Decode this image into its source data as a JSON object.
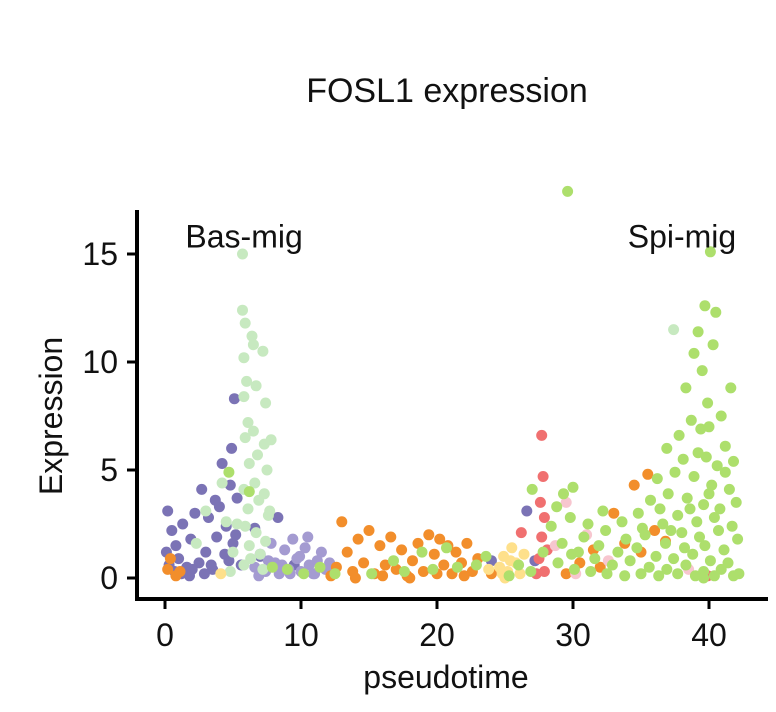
{
  "chart_data": {
    "type": "scatter",
    "title": "FOSL1 expression",
    "xlabel": "pseudotime",
    "ylabel": "Expression",
    "xlim": [
      -1,
      42.5
    ],
    "ylim": [
      -1,
      17
    ],
    "xticks": [
      0,
      10,
      20,
      30,
      40
    ],
    "yticks": [
      0,
      5,
      10,
      15
    ],
    "annotations": [
      {
        "text": "Bas-mig",
        "x": 1.5,
        "y": 15.8,
        "anchor": "start"
      },
      {
        "text": "Spi-mig",
        "x": 42,
        "y": 15.8,
        "anchor": "end"
      }
    ],
    "grid": false,
    "legend": "none",
    "series": [
      {
        "name": "group-dark-purple",
        "color": "#7b73b5",
        "points": [
          [
            0.2,
            3.1
          ],
          [
            0.5,
            2.2
          ],
          [
            0.8,
            1.5
          ],
          [
            1.0,
            0.9
          ],
          [
            1.3,
            2.5
          ],
          [
            1.6,
            0.5
          ],
          [
            1.9,
            1.8
          ],
          [
            2.2,
            3.0
          ],
          [
            2.5,
            0.7
          ],
          [
            2.7,
            4.1
          ],
          [
            3.0,
            1.2
          ],
          [
            3.2,
            2.8
          ],
          [
            3.5,
            0.4
          ],
          [
            3.8,
            1.9
          ],
          [
            4.0,
            3.3
          ],
          [
            4.2,
            5.3
          ],
          [
            4.5,
            2.4
          ],
          [
            4.7,
            0.8
          ],
          [
            4.9,
            6.0
          ],
          [
            5.1,
            8.3
          ],
          [
            5.3,
            3.7
          ],
          [
            0.3,
            0.6
          ],
          [
            0.7,
            0.3
          ],
          [
            1.2,
            0.2
          ],
          [
            2.0,
            0.4
          ],
          [
            2.9,
            0.2
          ],
          [
            3.4,
            0.6
          ],
          [
            4.4,
            1.1
          ],
          [
            5.0,
            1.6
          ],
          [
            6.6,
            2.3
          ],
          [
            7.0,
            1.0
          ],
          [
            8.3,
            2.8
          ],
          [
            9.5,
            0.6
          ],
          [
            26.6,
            3.1
          ],
          [
            27.2,
            0.8
          ],
          [
            24.0,
            0.8
          ],
          [
            5.6,
            0.6
          ],
          [
            1.8,
            0.1
          ],
          [
            0.1,
            1.2
          ],
          [
            4.8,
            4.3
          ],
          [
            5.2,
            2.0
          ],
          [
            3.7,
            3.6
          ]
        ]
      },
      {
        "name": "group-light-purple",
        "color": "#a49bd1",
        "points": [
          [
            6.6,
            0.5
          ],
          [
            7.0,
            1.1
          ],
          [
            7.4,
            0.3
          ],
          [
            7.8,
            1.6
          ],
          [
            8.1,
            0.7
          ],
          [
            8.4,
            0.2
          ],
          [
            8.8,
            1.3
          ],
          [
            9.1,
            0.4
          ],
          [
            9.4,
            1.8
          ],
          [
            9.7,
            0.9
          ],
          [
            10.0,
            0.3
          ],
          [
            10.3,
            1.4
          ],
          [
            10.6,
            0.6
          ],
          [
            10.9,
            0.2
          ],
          [
            11.2,
            0.8
          ],
          [
            11.5,
            1.2
          ],
          [
            11.8,
            0.4
          ],
          [
            12.1,
            0.7
          ],
          [
            8.6,
            0.6
          ],
          [
            9.9,
            1.0
          ],
          [
            7.6,
            0.8
          ],
          [
            10.5,
            1.9
          ],
          [
            11.0,
            0.2
          ],
          [
            6.9,
            0.1
          ],
          [
            9.2,
            0.2
          ],
          [
            12.4,
            0.3
          ]
        ]
      },
      {
        "name": "group-mint",
        "color": "#c7e9c0",
        "points": [
          [
            5.7,
            15.0
          ],
          [
            5.7,
            12.4
          ],
          [
            5.9,
            11.8
          ],
          [
            5.8,
            10.2
          ],
          [
            6.0,
            9.1
          ],
          [
            5.8,
            8.4
          ],
          [
            6.1,
            7.2
          ],
          [
            5.9,
            6.5
          ],
          [
            6.2,
            5.3
          ],
          [
            5.8,
            4.1
          ],
          [
            6.1,
            3.2
          ],
          [
            5.9,
            2.4
          ],
          [
            6.2,
            1.5
          ],
          [
            5.8,
            0.6
          ],
          [
            6.5,
            10.8
          ],
          [
            6.7,
            8.9
          ],
          [
            6.5,
            6.8
          ],
          [
            6.8,
            5.7
          ],
          [
            6.6,
            4.4
          ],
          [
            6.9,
            3.6
          ],
          [
            6.7,
            2.1
          ],
          [
            7.0,
            1.1
          ],
          [
            7.2,
            10.5
          ],
          [
            7.4,
            8.1
          ],
          [
            7.3,
            6.2
          ],
          [
            7.5,
            5.0
          ],
          [
            7.3,
            3.9
          ],
          [
            7.6,
            2.9
          ],
          [
            7.4,
            1.7
          ],
          [
            7.2,
            0.4
          ],
          [
            4.2,
            4.4
          ],
          [
            4.5,
            2.6
          ],
          [
            5.0,
            1.2
          ],
          [
            5.3,
            2.5
          ],
          [
            6.3,
            0.9
          ],
          [
            4.8,
            0.3
          ],
          [
            3.0,
            3.1
          ],
          [
            2.3,
            1.6
          ],
          [
            37.4,
            11.5
          ],
          [
            6.4,
            11.2
          ],
          [
            7.8,
            6.4
          ],
          [
            7.7,
            3.1
          ]
        ]
      },
      {
        "name": "group-orange",
        "color": "#f28e2b",
        "points": [
          [
            0.2,
            0.4
          ],
          [
            0.4,
            0.9
          ],
          [
            0.8,
            0.1
          ],
          [
            1.1,
            0.3
          ],
          [
            12.6,
            0.5
          ],
          [
            13.0,
            2.6
          ],
          [
            13.4,
            1.2
          ],
          [
            13.8,
            0.3
          ],
          [
            14.2,
            1.8
          ],
          [
            14.6,
            0.7
          ],
          [
            15.0,
            2.2
          ],
          [
            15.4,
            0.2
          ],
          [
            15.8,
            1.5
          ],
          [
            16.2,
            0.6
          ],
          [
            16.6,
            1.9
          ],
          [
            17.0,
            0.4
          ],
          [
            17.4,
            1.3
          ],
          [
            17.8,
            0.1
          ],
          [
            18.2,
            0.8
          ],
          [
            18.6,
            1.6
          ],
          [
            19.0,
            0.3
          ],
          [
            19.4,
            2.0
          ],
          [
            19.8,
            1.1
          ],
          [
            20.2,
            1.8
          ],
          [
            20.5,
            0.6
          ],
          [
            20.8,
            1.5
          ],
          [
            21.1,
            0.2
          ],
          [
            21.4,
            1.2
          ],
          [
            21.8,
            0.7
          ],
          [
            22.2,
            1.6
          ],
          [
            22.6,
            0.3
          ],
          [
            23.0,
            0.9
          ],
          [
            12.2,
            0.1
          ],
          [
            14.0,
            0.0
          ],
          [
            16.0,
            0.1
          ],
          [
            18.0,
            0.0
          ],
          [
            20.0,
            0.2
          ],
          [
            22.0,
            0.1
          ],
          [
            24.0,
            0.2
          ],
          [
            33.0,
            3.0
          ],
          [
            34.5,
            4.3
          ],
          [
            35.5,
            4.8
          ],
          [
            36.0,
            2.2
          ],
          [
            35.0,
            1.2
          ],
          [
            32.0,
            0.5
          ],
          [
            30.5,
            0.7
          ],
          [
            36.8,
            1.7
          ],
          [
            33.8,
            1.6
          ],
          [
            29.5,
            0.2
          ],
          [
            31.5,
            1.3
          ]
        ]
      },
      {
        "name": "group-yellow",
        "color": "#fee08b",
        "points": [
          [
            24.6,
            0.5
          ],
          [
            24.9,
            1.0
          ],
          [
            25.2,
            0.3
          ],
          [
            25.5,
            1.4
          ],
          [
            25.8,
            0.7
          ],
          [
            26.1,
            0.2
          ],
          [
            24.8,
            0.2
          ],
          [
            25.4,
            0.8
          ],
          [
            26.4,
            1.1
          ],
          [
            23.8,
            0.4
          ],
          [
            25.0,
            0.0
          ],
          [
            4.1,
            0.2
          ]
        ]
      },
      {
        "name": "group-red",
        "color": "#f07070",
        "points": [
          [
            27.7,
            6.6
          ],
          [
            27.8,
            4.7
          ],
          [
            27.6,
            3.5
          ],
          [
            27.9,
            2.8
          ],
          [
            27.7,
            1.9
          ],
          [
            27.5,
            0.9
          ],
          [
            27.9,
            0.3
          ],
          [
            27.3,
            0.2
          ],
          [
            28.1,
            1.3
          ],
          [
            26.2,
            2.1
          ],
          [
            39.9,
            0.1
          ]
        ]
      },
      {
        "name": "group-pink",
        "color": "#f7c6cf",
        "points": [
          [
            29.5,
            3.5
          ],
          [
            31.0,
            2.0
          ],
          [
            32.6,
            0.8
          ],
          [
            28.7,
            1.5
          ],
          [
            38.5,
            0.4
          ],
          [
            30.2,
            0.2
          ]
        ]
      },
      {
        "name": "group-green",
        "color": "#addf6c",
        "points": [
          [
            29.6,
            17.9
          ],
          [
            40.1,
            15.1
          ],
          [
            39.7,
            12.6
          ],
          [
            40.5,
            12.3
          ],
          [
            39.2,
            11.4
          ],
          [
            38.9,
            10.4
          ],
          [
            40.3,
            10.8
          ],
          [
            39.5,
            9.6
          ],
          [
            38.3,
            8.8
          ],
          [
            41.6,
            8.8
          ],
          [
            39.9,
            8.1
          ],
          [
            38.7,
            7.3
          ],
          [
            40.9,
            7.5
          ],
          [
            37.8,
            6.6
          ],
          [
            39.4,
            6.9
          ],
          [
            41.2,
            6.1
          ],
          [
            36.9,
            6.0
          ],
          [
            38.1,
            5.5
          ],
          [
            39.8,
            5.6
          ],
          [
            40.6,
            5.2
          ],
          [
            41.8,
            5.4
          ],
          [
            36.2,
            4.6
          ],
          [
            37.5,
            4.9
          ],
          [
            38.9,
            4.7
          ],
          [
            40.2,
            4.3
          ],
          [
            41.5,
            4.1
          ],
          [
            35.7,
            3.6
          ],
          [
            37.0,
            3.9
          ],
          [
            38.4,
            3.7
          ],
          [
            39.6,
            3.4
          ],
          [
            40.8,
            3.2
          ],
          [
            42.0,
            3.5
          ],
          [
            34.8,
            3.0
          ],
          [
            36.4,
            3.2
          ],
          [
            37.7,
            2.9
          ],
          [
            39.1,
            2.6
          ],
          [
            40.4,
            2.8
          ],
          [
            41.7,
            2.4
          ],
          [
            33.6,
            2.6
          ],
          [
            35.1,
            2.3
          ],
          [
            36.6,
            2.5
          ],
          [
            38.0,
            2.1
          ],
          [
            39.3,
            1.9
          ],
          [
            40.7,
            2.2
          ],
          [
            42.1,
            1.8
          ],
          [
            32.4,
            2.2
          ],
          [
            33.9,
            1.8
          ],
          [
            35.3,
            2.0
          ],
          [
            36.8,
            1.6
          ],
          [
            38.2,
            1.4
          ],
          [
            39.7,
            1.5
          ],
          [
            41.1,
            1.3
          ],
          [
            30.8,
            1.9
          ],
          [
            31.9,
            1.5
          ],
          [
            33.3,
            1.2
          ],
          [
            34.7,
            1.4
          ],
          [
            36.1,
            1.0
          ],
          [
            37.4,
            0.9
          ],
          [
            38.8,
            1.1
          ],
          [
            40.1,
            0.8
          ],
          [
            41.4,
            0.7
          ],
          [
            29.2,
            1.6
          ],
          [
            30.4,
            1.2
          ],
          [
            31.6,
            0.9
          ],
          [
            32.9,
            0.6
          ],
          [
            34.2,
            0.8
          ],
          [
            35.6,
            0.5
          ],
          [
            36.9,
            0.4
          ],
          [
            38.3,
            0.6
          ],
          [
            39.6,
            0.3
          ],
          [
            40.9,
            0.4
          ],
          [
            42.2,
            0.2
          ],
          [
            27.8,
            1.2
          ],
          [
            28.9,
            0.7
          ],
          [
            30.1,
            0.4
          ],
          [
            31.3,
            0.3
          ],
          [
            32.5,
            0.2
          ],
          [
            33.8,
            0.1
          ],
          [
            35.0,
            0.2
          ],
          [
            36.3,
            0.1
          ],
          [
            37.7,
            0.2
          ],
          [
            39.0,
            0.1
          ],
          [
            40.4,
            0.1
          ],
          [
            41.8,
            0.1
          ],
          [
            26.0,
            0.6
          ],
          [
            26.9,
            0.3
          ],
          [
            25.3,
            0.1
          ],
          [
            28.4,
            2.4
          ],
          [
            29.8,
            2.8
          ],
          [
            31.1,
            2.5
          ],
          [
            32.2,
            3.1
          ],
          [
            30.0,
            4.2
          ],
          [
            28.8,
            3.3
          ],
          [
            27.0,
            4.1
          ],
          [
            29.3,
            3.9
          ],
          [
            29.9,
            1.1
          ],
          [
            22.9,
            0.6
          ],
          [
            23.6,
            1.0
          ],
          [
            21.5,
            0.5
          ],
          [
            20.7,
            1.4
          ],
          [
            19.7,
            0.4
          ],
          [
            18.9,
            1.2
          ],
          [
            17.6,
            0.3
          ],
          [
            16.8,
            0.8
          ],
          [
            15.2,
            0.2
          ],
          [
            12.5,
            0.2
          ],
          [
            11.4,
            0.5
          ],
          [
            10.2,
            0.2
          ],
          [
            9.0,
            0.4
          ],
          [
            7.9,
            0.5
          ],
          [
            6.2,
            4.0
          ],
          [
            4.7,
            4.9
          ],
          [
            39.6,
            0.0
          ],
          [
            37.2,
            2.2
          ],
          [
            38.6,
            3.2
          ],
          [
            40.0,
            3.9
          ],
          [
            41.2,
            4.9
          ],
          [
            39.2,
            5.8
          ],
          [
            40.0,
            7.0
          ]
        ]
      }
    ]
  }
}
